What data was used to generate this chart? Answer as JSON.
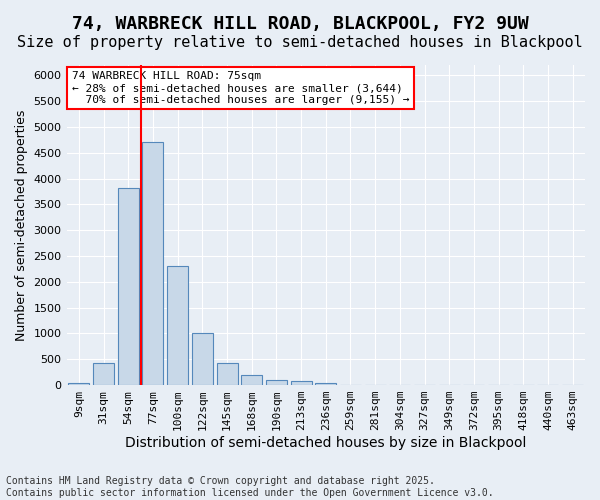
{
  "title1": "74, WARBRECK HILL ROAD, BLACKPOOL, FY2 9UW",
  "title2": "Size of property relative to semi-detached houses in Blackpool",
  "xlabel": "Distribution of semi-detached houses by size in Blackpool",
  "ylabel": "Number of semi-detached properties",
  "bar_values": [
    50,
    430,
    3820,
    4700,
    2300,
    1000,
    420,
    200,
    100,
    80,
    50,
    5,
    2,
    1,
    0,
    0,
    0,
    0,
    0,
    0,
    0
  ],
  "categories": [
    "9sqm",
    "31sqm",
    "54sqm",
    "77sqm",
    "100sqm",
    "122sqm",
    "145sqm",
    "168sqm",
    "190sqm",
    "213sqm",
    "236sqm",
    "259sqm",
    "281sqm",
    "304sqm",
    "327sqm",
    "349sqm",
    "372sqm",
    "395sqm",
    "418sqm",
    "440sqm",
    "463sqm"
  ],
  "bar_color": "#c8d8e8",
  "bar_edge_color": "#5588bb",
  "vline_x": 2.5,
  "vline_color": "red",
  "property_label": "74 WARBRECK HILL ROAD: 75sqm",
  "pct_smaller": 28,
  "n_smaller": 3644,
  "pct_larger": 70,
  "n_larger": 9155,
  "ylim": [
    0,
    6200
  ],
  "yticks": [
    0,
    500,
    1000,
    1500,
    2000,
    2500,
    3000,
    3500,
    4000,
    4500,
    5000,
    5500,
    6000
  ],
  "bg_color": "#e8eef5",
  "grid_color": "white",
  "annotation_box_color": "white",
  "annotation_box_edge": "red",
  "footnote": "Contains HM Land Registry data © Crown copyright and database right 2025.\nContains public sector information licensed under the Open Government Licence v3.0.",
  "title1_fontsize": 13,
  "title2_fontsize": 11,
  "xlabel_fontsize": 10,
  "ylabel_fontsize": 9,
  "tick_fontsize": 8,
  "annot_fontsize": 8,
  "footnote_fontsize": 7
}
